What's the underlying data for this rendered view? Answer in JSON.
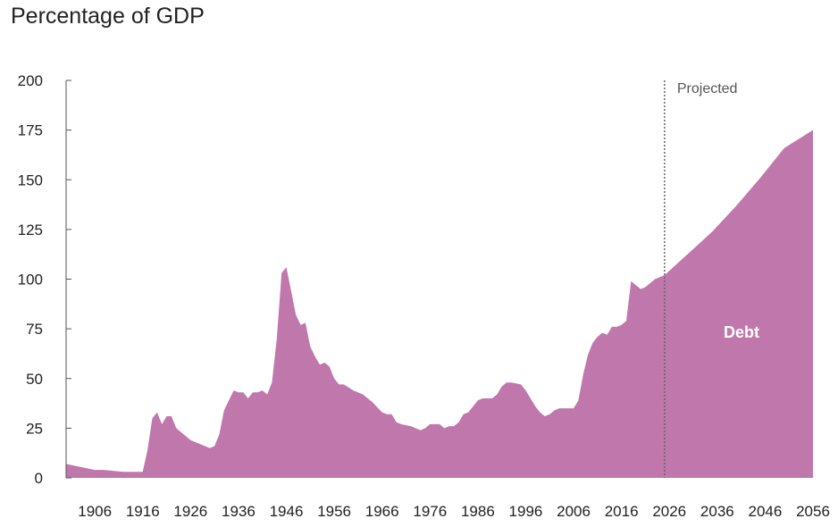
{
  "title": "Percentage of GDP",
  "chart_data": {
    "type": "area",
    "title": "Percentage of GDP",
    "xlabel": "",
    "ylabel": "",
    "xlim": [
      1900,
      2056
    ],
    "ylim": [
      0,
      200
    ],
    "y_ticks": [
      0,
      25,
      50,
      75,
      100,
      125,
      150,
      175,
      200
    ],
    "x_ticks": [
      1906,
      1916,
      1926,
      1936,
      1946,
      1956,
      1966,
      1976,
      1986,
      1996,
      2006,
      2016,
      2026,
      2036,
      2046,
      2056
    ],
    "grid": false,
    "projection_start": 2025,
    "projection_label": "Projected",
    "series_label": "Debt",
    "color": "#c077ab",
    "series": [
      {
        "name": "Debt",
        "x": [
          1900,
          1902,
          1904,
          1906,
          1908,
          1910,
          1912,
          1914,
          1916,
          1917,
          1918,
          1919,
          1920,
          1921,
          1922,
          1923,
          1924,
          1926,
          1928,
          1930,
          1931,
          1932,
          1933,
          1934,
          1935,
          1936,
          1937,
          1938,
          1939,
          1940,
          1941,
          1942,
          1943,
          1944,
          1945,
          1946,
          1947,
          1948,
          1949,
          1950,
          1951,
          1952,
          1953,
          1954,
          1955,
          1956,
          1957,
          1958,
          1960,
          1962,
          1964,
          1966,
          1967,
          1968,
          1969,
          1970,
          1972,
          1974,
          1975,
          1976,
          1977,
          1978,
          1979,
          1980,
          1981,
          1982,
          1983,
          1984,
          1985,
          1986,
          1987,
          1988,
          1989,
          1990,
          1991,
          1992,
          1993,
          1995,
          1996,
          1997,
          1998,
          1999,
          2000,
          2001,
          2002,
          2003,
          2004,
          2005,
          2006,
          2007,
          2008,
          2009,
          2010,
          2011,
          2012,
          2013,
          2014,
          2015,
          2016,
          2017,
          2018,
          2019,
          2020,
          2021,
          2022,
          2023,
          2024,
          2025,
          2030,
          2035,
          2040,
          2045,
          2050,
          2056
        ],
        "values": [
          7,
          6,
          5,
          4,
          4,
          3.5,
          3,
          3,
          3,
          14,
          30,
          33,
          27,
          31,
          31,
          25,
          23,
          19,
          17,
          15,
          16,
          22,
          34,
          39,
          44,
          43,
          43,
          40,
          43,
          43,
          44,
          42,
          48,
          70,
          103,
          106,
          94,
          82,
          77,
          78,
          66,
          61,
          57,
          58,
          56,
          50,
          47,
          47,
          44,
          42,
          38,
          33,
          32,
          32,
          28,
          27,
          26,
          24,
          25,
          27,
          27,
          27,
          25,
          26,
          26,
          28,
          32,
          33,
          36,
          39,
          40,
          40,
          40,
          42,
          46,
          48,
          48,
          47,
          44,
          40,
          36,
          33,
          31,
          32,
          34,
          35,
          35,
          35,
          35,
          39,
          52,
          62,
          68,
          71,
          73,
          72,
          76,
          76,
          77,
          79,
          99,
          97,
          95,
          96,
          98,
          100,
          101,
          102,
          113,
          124,
          137,
          151,
          166,
          175
        ]
      }
    ]
  }
}
